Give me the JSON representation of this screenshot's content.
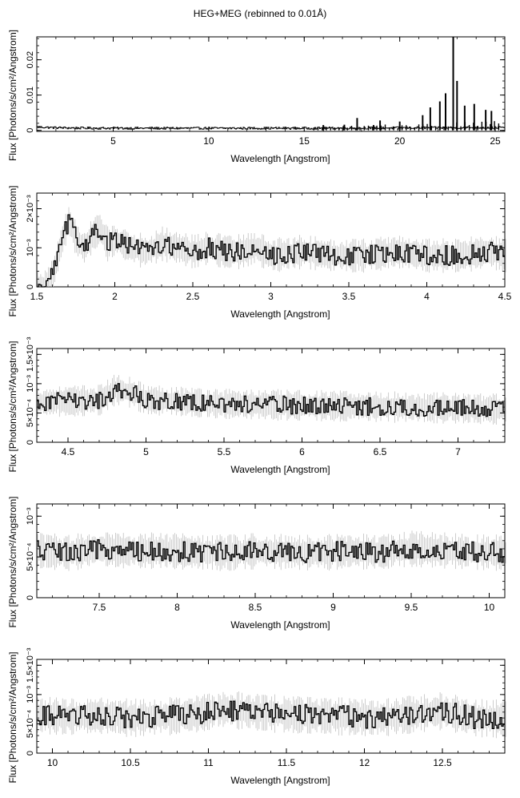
{
  "figure": {
    "title": "HEG+MEG (rebinned to 0.01Å)"
  },
  "chart_data": [
    {
      "type": "line",
      "title": "HEG+MEG (rebinned to 0.01Å)",
      "xlabel": "Wavelength [Angstrom]",
      "ylabel": "Flux [Photons/s/cm²/Angstrom]",
      "xlim": [
        1.0,
        25.5
      ],
      "ylim": [
        -0.0003,
        0.0265
      ],
      "xticks": [
        5,
        10,
        15,
        20,
        25
      ],
      "xtick_labels": [
        "5",
        "10",
        "15",
        "20",
        "25"
      ],
      "yticks": [
        0,
        0.01,
        0.02
      ],
      "ytick_labels": [
        "0",
        "0.01",
        "0.02"
      ],
      "grid": false,
      "lines": [
        {
          "wavelength": 16.0,
          "flux": 0.0015
        },
        {
          "wavelength": 17.1,
          "flux": 0.0016
        },
        {
          "wavelength": 17.77,
          "flux": 0.0035
        },
        {
          "wavelength": 18.63,
          "flux": 0.0015
        },
        {
          "wavelength": 18.97,
          "flux": 0.0028
        },
        {
          "wavelength": 20.0,
          "flux": 0.0025
        },
        {
          "wavelength": 21.2,
          "flux": 0.0043
        },
        {
          "wavelength": 21.6,
          "flux": 0.0065
        },
        {
          "wavelength": 22.1,
          "flux": 0.0082
        },
        {
          "wavelength": 22.4,
          "flux": 0.0105
        },
        {
          "wavelength": 22.8,
          "flux": 0.0265
        },
        {
          "wavelength": 23.0,
          "flux": 0.014
        },
        {
          "wavelength": 23.4,
          "flux": 0.007
        },
        {
          "wavelength": 23.9,
          "flux": 0.0075
        },
        {
          "wavelength": 24.5,
          "flux": 0.0058
        },
        {
          "wavelength": 24.8,
          "flux": 0.0055
        }
      ]
    },
    {
      "type": "line",
      "xlabel": "Wavelength [Angstrom]",
      "ylabel": "Flux [Photons/s/cm²/Angstrom]",
      "xlim": [
        1.5,
        4.5
      ],
      "ylim": [
        0,
        0.0024
      ],
      "xticks": [
        1.5,
        2,
        2.5,
        3,
        3.5,
        4,
        4.5
      ],
      "xtick_labels": [
        "1.5",
        "2",
        "2.5",
        "3",
        "3.5",
        "4",
        "4.5"
      ],
      "yticks": [
        0,
        0.001,
        0.002
      ],
      "ytick_labels": [
        "0",
        "10⁻³",
        "2×10⁻³"
      ],
      "grid": false,
      "baseline": 0.00085,
      "x": [
        1.55,
        1.6,
        1.65,
        1.7,
        1.75,
        1.8,
        1.85,
        1.9,
        1.95,
        2.0,
        2.1,
        2.2,
        2.3,
        2.4,
        2.5,
        2.6,
        2.7,
        2.8,
        2.9,
        3.0,
        3.2,
        3.4,
        3.6,
        3.8,
        4.0,
        4.2,
        4.4,
        4.5
      ],
      "y": [
        0.0,
        0.0003,
        0.0011,
        0.0017,
        0.0012,
        0.001,
        0.0013,
        0.0015,
        0.0011,
        0.0012,
        0.001,
        0.0009,
        0.0011,
        0.001,
        0.0009,
        0.001,
        0.0009,
        0.0009,
        0.001,
        0.0008,
        0.0009,
        0.0008,
        0.0008,
        0.0009,
        0.0008,
        0.0008,
        0.0009,
        0.0008
      ],
      "noise": 0.0003
    },
    {
      "type": "line",
      "xlabel": "Wavelength [Angstrom]",
      "ylabel": "Flux [Photons/s/cm²/Angstrom]",
      "xlim": [
        4.3,
        7.3
      ],
      "ylim": [
        0,
        0.0016
      ],
      "xticks": [
        4.5,
        5,
        5.5,
        6,
        6.5,
        7
      ],
      "xtick_labels": [
        "4.5",
        "5",
        "5.5",
        "6",
        "6.5",
        "7"
      ],
      "yticks": [
        0,
        0.0005,
        0.001,
        0.0015
      ],
      "ytick_labels": [
        "0",
        "5×10⁻⁴",
        "10⁻³",
        "1.5×10⁻³"
      ],
      "grid": false,
      "baseline": 0.00065,
      "x": [
        4.3,
        4.5,
        4.7,
        4.8,
        4.9,
        5.0,
        5.2,
        5.4,
        5.6,
        5.8,
        6.0,
        6.2,
        6.4,
        6.6,
        6.8,
        7.0,
        7.2,
        7.3
      ],
      "y": [
        0.00068,
        0.0007,
        0.00072,
        0.0009,
        0.00085,
        0.00072,
        0.0007,
        0.00066,
        0.00065,
        0.00064,
        0.00063,
        0.00062,
        0.00061,
        0.0006,
        0.00059,
        0.00058,
        0.00057,
        0.00056
      ],
      "noise": 0.00018
    },
    {
      "type": "line",
      "xlabel": "Wavelength [Angstrom]",
      "ylabel": "Flux [Photons/s/cm²/Angstrom]",
      "xlim": [
        7.1,
        10.1
      ],
      "ylim": [
        0,
        0.00115
      ],
      "xticks": [
        7.5,
        8,
        8.5,
        9,
        9.5,
        10
      ],
      "xtick_labels": [
        "7.5",
        "8",
        "8.5",
        "9",
        "9.5",
        "10"
      ],
      "yticks": [
        0,
        0.0005,
        0.001
      ],
      "ytick_labels": [
        "0",
        "5×10⁻⁴",
        "10⁻³"
      ],
      "grid": false,
      "baseline": 0.00056,
      "x": [
        7.1,
        7.3,
        7.5,
        7.7,
        7.9,
        8.1,
        8.3,
        8.5,
        8.7,
        8.9,
        9.1,
        9.3,
        9.5,
        9.7,
        9.9,
        10.1
      ],
      "y": [
        0.00058,
        0.00055,
        0.0006,
        0.00057,
        0.00058,
        0.00056,
        0.00055,
        0.00057,
        0.00056,
        0.00055,
        0.00057,
        0.00056,
        0.0006,
        0.00058,
        0.00056,
        0.00055
      ],
      "noise": 0.00015
    },
    {
      "type": "line",
      "xlabel": "Wavelength [Angstrom]",
      "ylabel": "Flux [Photons/s/cm²/Angstrom]",
      "xlim": [
        9.9,
        12.9
      ],
      "ylim": [
        0,
        0.0016
      ],
      "xticks": [
        10,
        10.5,
        11,
        11.5,
        12,
        12.5
      ],
      "xtick_labels": [
        "10",
        "10.5",
        "11",
        "11.5",
        "12",
        "12.5"
      ],
      "yticks": [
        0,
        0.0005,
        0.001,
        0.0015
      ],
      "ytick_labels": [
        "0",
        "5×10⁻⁴",
        "10⁻³",
        "1.5×10⁻³"
      ],
      "grid": false,
      "baseline": 0.00062,
      "x": [
        9.9,
        10.1,
        10.3,
        10.5,
        10.7,
        10.9,
        11.1,
        11.3,
        11.5,
        11.7,
        11.9,
        12.1,
        12.3,
        12.5,
        12.7,
        12.9
      ],
      "y": [
        0.00065,
        0.00062,
        0.00064,
        0.0006,
        0.00062,
        0.00066,
        0.00075,
        0.0007,
        0.00066,
        0.00064,
        0.00062,
        0.0006,
        0.00066,
        0.00072,
        0.0006,
        0.00058
      ],
      "noise": 0.00022
    }
  ]
}
